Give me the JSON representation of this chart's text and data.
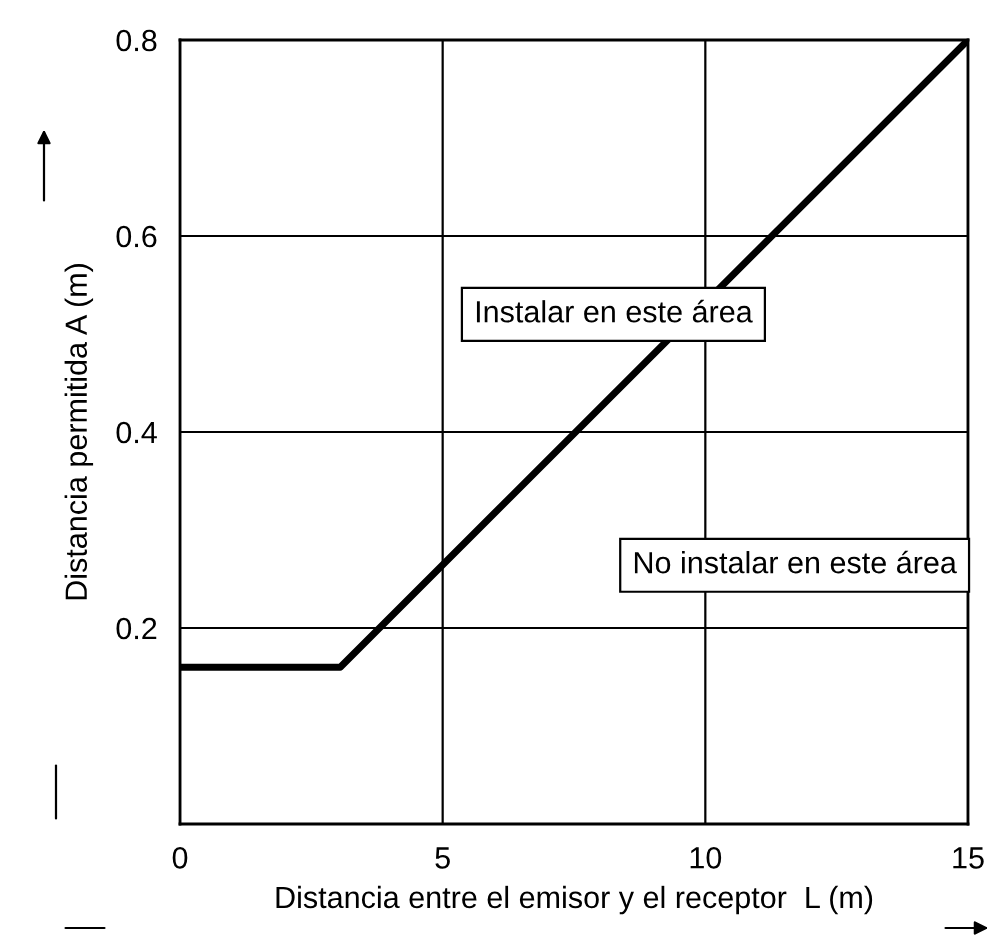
{
  "chart_data": {
    "type": "line",
    "xlabel": "Distancia entre el emisor y el receptor  L (m)",
    "ylabel": "Distancia permitida A (m)",
    "x": [
      0,
      3.05,
      15
    ],
    "series": [
      {
        "color": "#000000",
        "values": [
          0.16,
          0.16,
          0.8
        ]
      }
    ],
    "xlim": [
      0,
      15
    ],
    "ylim": [
      0,
      0.8
    ],
    "xticks": [
      0,
      5,
      10,
      15
    ],
    "yticks": [
      {
        "value": 0,
        "label": null
      },
      0.2,
      0.4,
      0.6,
      0.8
    ],
    "grid": true,
    "marker": "none",
    "line_style": "solid",
    "annotations": [
      "Instalar en este área",
      "No instalar en este área"
    ]
  }
}
